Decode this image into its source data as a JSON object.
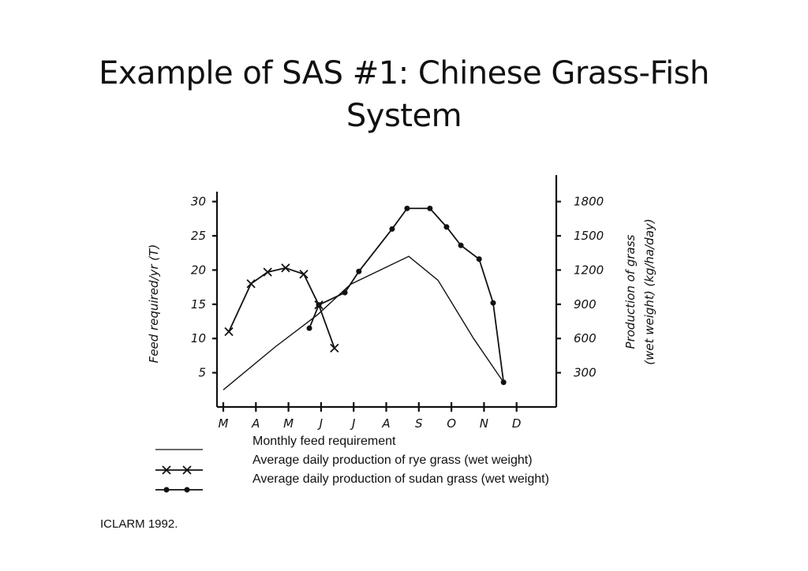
{
  "slide": {
    "title_line1": "Example of SAS #1: Chinese Grass-Fish",
    "title_line2": "System",
    "citation": "ICLARM 1992."
  },
  "chart_data": {
    "type": "line",
    "xlabel": "",
    "ylabel": "Feed required/yr (T)",
    "y2label_line1": "Production of grass",
    "y2label_line2": "(wet weight) (kg/ha/day)",
    "categories": [
      "M",
      "A",
      "M",
      "J",
      "J",
      "A",
      "S",
      "O",
      "N",
      "D"
    ],
    "ylim": [
      0,
      32
    ],
    "yticks": [
      5,
      10,
      15,
      20,
      25,
      30
    ],
    "y2ticks": [
      300,
      600,
      900,
      1200,
      1500,
      1800
    ],
    "y2_per_y": 60,
    "series": [
      {
        "name": "Monthly feed requirement",
        "marker": "none",
        "x": [
          0,
          1.6,
          2.9,
          3.9,
          5.69,
          6.59,
          7.68,
          8.6
        ],
        "y": [
          2.5,
          8.8,
          13.5,
          17.9,
          22,
          18.5,
          10,
          3.6
        ]
      },
      {
        "name": "Average daily production of rye grass (wet weight)",
        "marker": "x",
        "x": [
          0.17,
          0.85,
          1.36,
          1.91,
          2.47,
          2.93,
          3.41
        ],
        "y": [
          11,
          18,
          19.7,
          20.3,
          19.4,
          14.9,
          8.6
        ]
      },
      {
        "name": "Average daily production of sudan grass (wet weight)",
        "marker": "dot",
        "x": [
          2.64,
          2.93,
          3.73,
          4.16,
          5.18,
          5.64,
          6.34,
          6.85,
          7.29,
          7.85,
          8.28,
          8.6
        ],
        "y": [
          11.5,
          14.9,
          16.7,
          19.8,
          26,
          29,
          29,
          26.3,
          23.6,
          21.6,
          15.2,
          3.6
        ]
      }
    ]
  }
}
